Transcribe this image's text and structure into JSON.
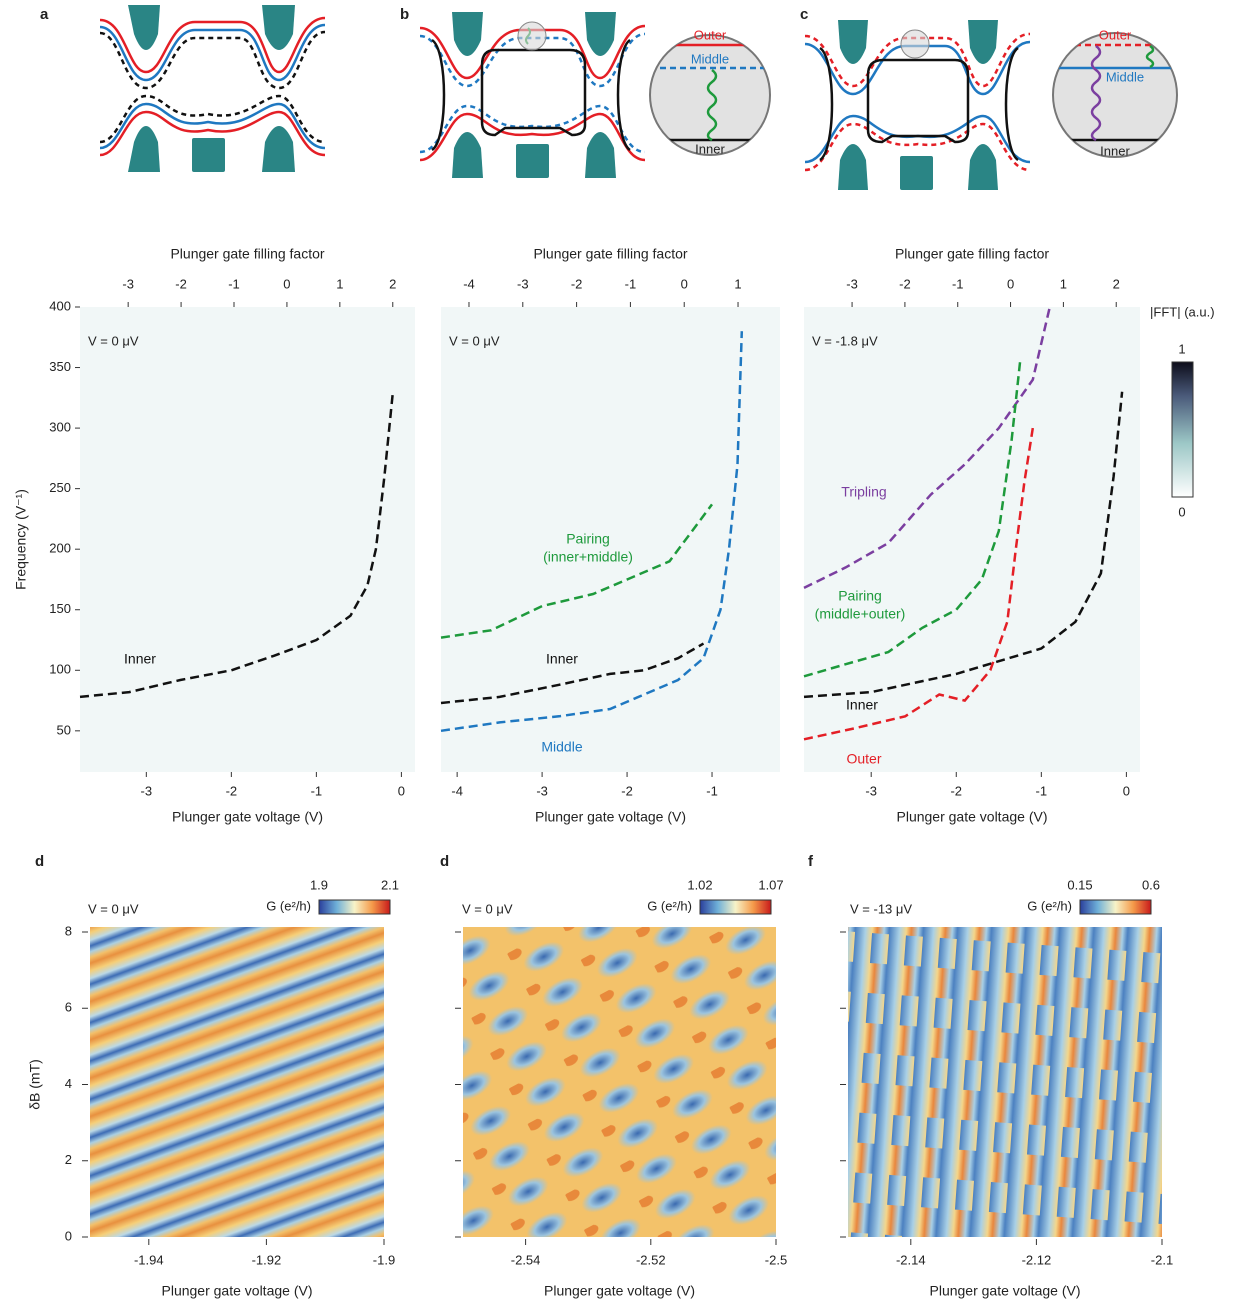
{
  "schematics": [
    {
      "panel_label": "a"
    },
    {
      "panel_label": "b",
      "inset_labels": [
        "Outer",
        "Middle",
        "Inner"
      ]
    },
    {
      "panel_label": "c",
      "inset_labels": [
        "Outer",
        "Middle",
        "Inner"
      ]
    }
  ],
  "chart_data": [
    {
      "type": "line",
      "annotation": "V = 0 μV",
      "x_label": "Plunger gate voltage (V)",
      "x2_label": "Plunger gate filling factor",
      "y_label": "Frequency (V⁻¹)",
      "xlim": [
        -3.78,
        0.16
      ],
      "xticks": [
        -3,
        -2,
        -1,
        0
      ],
      "x2lim": [
        -3.91,
        2.42
      ],
      "x2ticks": [
        -3,
        -2,
        -1,
        0,
        1,
        2
      ],
      "ylim": [
        16,
        400
      ],
      "yticks": [
        50,
        100,
        150,
        200,
        250,
        300,
        350,
        400
      ],
      "series": [
        {
          "name": "Inner",
          "color": "#111111",
          "x": [
            -3.78,
            -3.2,
            -2.6,
            -2,
            -1.5,
            -1,
            -0.6,
            -0.4,
            -0.3,
            -0.2,
            -0.1
          ],
          "values": [
            78,
            82,
            92,
            100,
            112,
            125,
            145,
            170,
            200,
            260,
            330
          ]
        }
      ]
    },
    {
      "type": "line",
      "annotation": "V = 0 μV",
      "x_label": "Plunger gate voltage (V)",
      "x2_label": "Plunger gate filling factor",
      "xlim": [
        -4.19,
        -0.2
      ],
      "xticks": [
        -4,
        -3,
        -2,
        -1
      ],
      "x2lim": [
        -4.52,
        1.78
      ],
      "x2ticks": [
        -4,
        -3,
        -2,
        -1,
        0,
        1
      ],
      "ylim": [
        16,
        400
      ],
      "series": [
        {
          "name": "Pairing",
          "note": "(inner+middle)",
          "color": "#1e9a3c",
          "x": [
            -4.19,
            -3.6,
            -3.0,
            -2.4,
            -2.0,
            -1.5,
            -1.0
          ],
          "values": [
            127,
            133,
            153,
            163,
            175,
            190,
            237
          ]
        },
        {
          "name": "Inner",
          "color": "#111111",
          "x": [
            -4.19,
            -3.5,
            -2.8,
            -2.2,
            -1.8,
            -1.4,
            -1.1
          ],
          "values": [
            73,
            78,
            88,
            97,
            100,
            110,
            122
          ]
        },
        {
          "name": "Middle",
          "color": "#1f78c1",
          "x": [
            -4.19,
            -3.5,
            -2.8,
            -2.2,
            -1.8,
            -1.4,
            -1.1,
            -0.9,
            -0.8,
            -0.7,
            -0.65
          ],
          "values": [
            50,
            57,
            62,
            68,
            80,
            92,
            110,
            150,
            200,
            270,
            380
          ]
        }
      ]
    },
    {
      "type": "line",
      "annotation": "V = -1.8 μV",
      "x_label": "Plunger gate voltage (V)",
      "x2_label": "Plunger gate filling factor",
      "xlim": [
        -3.79,
        0.16
      ],
      "xticks": [
        -3,
        -2,
        -1,
        0
      ],
      "x2lim": [
        -3.91,
        2.45
      ],
      "x2ticks": [
        -3,
        -2,
        -1,
        0,
        1,
        2
      ],
      "ylim": [
        16,
        400
      ],
      "colorbar_label": "|FFT| (a.u.)",
      "clim": [
        0,
        1
      ],
      "series": [
        {
          "name": "Tripling",
          "color": "#7b3fa0",
          "x": [
            -3.79,
            -3.3,
            -2.8,
            -2.3,
            -1.9,
            -1.5,
            -1.1,
            -0.9
          ],
          "values": [
            168,
            185,
            205,
            245,
            270,
            300,
            340,
            400
          ]
        },
        {
          "name": "Pairing",
          "note": "(middle+outer)",
          "color": "#1e9a3c",
          "x": [
            -3.79,
            -3.3,
            -2.8,
            -2.4,
            -2.0,
            -1.7,
            -1.5,
            -1.35,
            -1.25
          ],
          "values": [
            95,
            105,
            115,
            135,
            150,
            175,
            215,
            290,
            355
          ]
        },
        {
          "name": "Inner",
          "color": "#111111",
          "x": [
            -3.79,
            -3.0,
            -2.0,
            -1.0,
            -0.6,
            -0.3,
            -0.15,
            -0.05
          ],
          "values": [
            78,
            82,
            97,
            118,
            140,
            180,
            260,
            330
          ]
        },
        {
          "name": "Outer",
          "color": "#e41f26",
          "x": [
            -3.79,
            -3.2,
            -2.6,
            -2.2,
            -1.9,
            -1.6,
            -1.4,
            -1.3,
            -1.2,
            -1.1
          ],
          "values": [
            43,
            52,
            62,
            80,
            75,
            100,
            140,
            200,
            255,
            300
          ]
        }
      ]
    },
    {
      "type": "heatmap",
      "panel_label": "d",
      "annotation": "V = 0 μV",
      "colorbar_label": "G (e²/h)",
      "clim": [
        1.9,
        2.1
      ],
      "x_label": "Plunger gate voltage (V)",
      "y_label": "δB (mT)",
      "xlim": [
        -1.95,
        -1.9
      ],
      "xticks": [
        -1.94,
        -1.92,
        -1.9
      ],
      "ylim": [
        0,
        8
      ],
      "yticks": [
        0,
        2,
        4,
        6,
        8
      ]
    },
    {
      "type": "heatmap",
      "panel_label": "d",
      "annotation": "V = 0 μV",
      "colorbar_label": "G (e²/h)",
      "clim": [
        1.02,
        1.07
      ],
      "x_label": "Plunger gate voltage (V)",
      "xlim": [
        -2.55,
        -2.5
      ],
      "xticks": [
        -2.54,
        -2.52,
        -2.5
      ],
      "ylim": [
        0,
        8
      ]
    },
    {
      "type": "heatmap",
      "panel_label": "f",
      "annotation": "V = -13 μV",
      "colorbar_label": "G (e²/h)",
      "clim": [
        0.15,
        0.6
      ],
      "x_label": "Plunger gate voltage (V)",
      "xlim": [
        -2.15,
        -2.1
      ],
      "xticks": [
        -2.14,
        -2.12,
        -2.1
      ],
      "ylim": [
        0,
        8
      ]
    }
  ]
}
